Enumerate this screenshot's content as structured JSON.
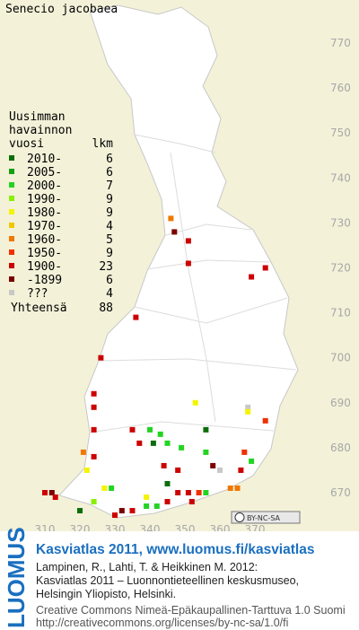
{
  "title": "Senecio jacobaea",
  "legend": {
    "header": [
      "Uusimman",
      "havainnon",
      "vuosi"
    ],
    "count_header": "lkm",
    "classes": [
      {
        "label": "2010-",
        "count": 6,
        "color": "#0b6e0b"
      },
      {
        "label": "2005-",
        "count": 6,
        "color": "#12a012"
      },
      {
        "label": "2000-",
        "count": 7,
        "color": "#22d422"
      },
      {
        "label": "1990-",
        "count": 9,
        "color": "#88f000"
      },
      {
        "label": "1980-",
        "count": 9,
        "color": "#f4f400"
      },
      {
        "label": "1970-",
        "count": 4,
        "color": "#f0c800"
      },
      {
        "label": "1960-",
        "count": 5,
        "color": "#f07800"
      },
      {
        "label": "1950-",
        "count": 9,
        "color": "#f03000"
      },
      {
        "label": "1900-",
        "count": 23,
        "color": "#cc0000"
      },
      {
        "label": "-1899",
        "count": 6,
        "color": "#7a0000"
      },
      {
        "label": "???",
        "count": 4,
        "color": "#c8c8c8"
      }
    ],
    "total_label": "Yhteensä",
    "total": 88
  },
  "xlim": [
    310,
    370
  ],
  "xticks": [
    310,
    320,
    330,
    340,
    350,
    360,
    370
  ],
  "ylim": [
    670,
    770
  ],
  "yticks": [
    670,
    680,
    690,
    700,
    710,
    720,
    730,
    740,
    750,
    760,
    770
  ],
  "records": [
    [
      346,
      731,
      6
    ],
    [
      347,
      728,
      9
    ],
    [
      351,
      726,
      8
    ],
    [
      351,
      721,
      8
    ],
    [
      373,
      720,
      8
    ],
    [
      369,
      718,
      8
    ],
    [
      336,
      709,
      8
    ],
    [
      326,
      700,
      8
    ],
    [
      324,
      692,
      8
    ],
    [
      324,
      689,
      8
    ],
    [
      324,
      684,
      8
    ],
    [
      353,
      690,
      4
    ],
    [
      368,
      689,
      10
    ],
    [
      368,
      688,
      4
    ],
    [
      373,
      686,
      7
    ],
    [
      335,
      684,
      8
    ],
    [
      340,
      684,
      2
    ],
    [
      343,
      683,
      2
    ],
    [
      356,
      684,
      0
    ],
    [
      337,
      681,
      8
    ],
    [
      341,
      681,
      0
    ],
    [
      345,
      681,
      2
    ],
    [
      349,
      680,
      2
    ],
    [
      321,
      679,
      6
    ],
    [
      324,
      678,
      8
    ],
    [
      356,
      679,
      2
    ],
    [
      367,
      679,
      7
    ],
    [
      369,
      677,
      2
    ],
    [
      322,
      675,
      4
    ],
    [
      344,
      676,
      8
    ],
    [
      348,
      675,
      8
    ],
    [
      358,
      676,
      9
    ],
    [
      360,
      675,
      10
    ],
    [
      366,
      675,
      8
    ],
    [
      345,
      672,
      0
    ],
    [
      327,
      671,
      4
    ],
    [
      329,
      671,
      2
    ],
    [
      310,
      670,
      8
    ],
    [
      312,
      670,
      9
    ],
    [
      313,
      669,
      8
    ],
    [
      348,
      670,
      8
    ],
    [
      351,
      670,
      8
    ],
    [
      354,
      670,
      7
    ],
    [
      356,
      670,
      2
    ],
    [
      363,
      671,
      6
    ],
    [
      365,
      671,
      6
    ],
    [
      345,
      668,
      8
    ],
    [
      342,
      667,
      2
    ],
    [
      339,
      667,
      2
    ],
    [
      335,
      666,
      8
    ],
    [
      332,
      666,
      9
    ],
    [
      330,
      665,
      8
    ],
    [
      320,
      666,
      0
    ],
    [
      324,
      668,
      3
    ],
    [
      339,
      669,
      4
    ],
    [
      352,
      668,
      8
    ]
  ],
  "badge": "BY-NC-SA",
  "footer": {
    "brand": "LUOMUS",
    "heading": "Kasviatlas 2011, www.luomus.fi/kasviatlas",
    "citation": [
      "Lampinen, R., Lahti, T. & Heikkinen M. 2012:",
      "Kasviatlas 2011 – Luonnontieteellinen keskusmuseo,",
      "Helsingin Yliopisto, Helsinki."
    ],
    "license": [
      "Creative Commons Nimeä-Epäkaupallinen-Tarttuva 1.0 Suomi",
      "http://creativecommons.org/licenses/by-nc-sa/1.0/fi"
    ]
  }
}
